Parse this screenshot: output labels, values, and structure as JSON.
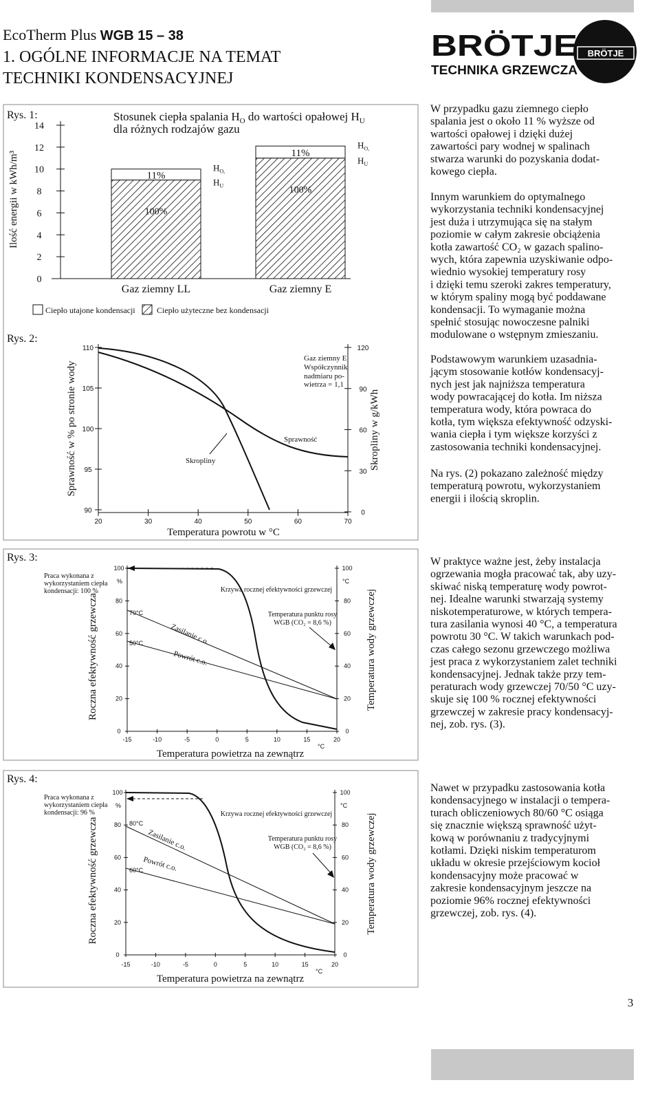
{
  "header": {
    "product": "EcoTherm Plus ",
    "model": "WGB 15 – 38",
    "title_lines": [
      "1. OGÓLNE INFORMACJE NA TEMAT",
      "TECHNIKI KONDENSACYJNEJ"
    ],
    "brand": "BRÖTJE",
    "brand_tagline": "TECHNIKA GRZEWCZA",
    "badge": "BRÖTJE"
  },
  "fig1": {
    "label": "Rys. 1:",
    "title": [
      "Stosunek ciepła spalania H",
      "O",
      " do wartości opałowej H",
      "U"
    ],
    "title_line2": "dla różnych rodzajów gazu",
    "y_label": "Ilość energii w kWh/m³",
    "ylim": [
      0,
      14
    ],
    "yticks": [
      0,
      2,
      4,
      6,
      8,
      10,
      12,
      14
    ],
    "bars": [
      {
        "name": "Gaz ziemny LL",
        "hu": 9.0,
        "ho": 10.0,
        "hu_label": "100%",
        "extra_label": "11%",
        "ho_text": [
          "H",
          "O,"
        ],
        "hu_text": [
          "H",
          "U"
        ]
      },
      {
        "name": "Gaz ziemny E",
        "hu": 11.0,
        "ho": 12.1,
        "hu_label": "100%",
        "extra_label": "11%",
        "ho_text": [
          "H",
          "O,"
        ],
        "hu_text": [
          "H",
          "U"
        ]
      }
    ],
    "legend": [
      "Ciepło utajone kondensacji",
      "Ciepło użyteczne bez kondensacji"
    ]
  },
  "fig2": {
    "label": "Rys. 2:",
    "y_label": "Sprawność w % po stronie wody",
    "y2_label": "Skropliny w g/kWh",
    "x_label": "Temperatura powrotu w °C",
    "yticks": [
      90,
      95,
      100,
      105,
      110
    ],
    "y2ticks": [
      0,
      30,
      60,
      90,
      120
    ],
    "xticks": [
      20,
      30,
      40,
      50,
      60,
      70
    ],
    "annotation": [
      "Gaz ziemny E",
      "Współczynnik",
      "nadmiaru po-",
      "wietrza = 1,1"
    ],
    "efficiency_label": "Sprawność",
    "condensate_label": "Skropliny"
  },
  "fig3": {
    "label": "Rys. 3:",
    "note": [
      "Praca wykonana z",
      "wykorzystaniem ciepła",
      "kondensacji: 100 %"
    ],
    "y_label": "Roczna efektywność grzewcza",
    "y2_label": "Temperatura wody grzewczej",
    "x_label": "Temperatura powietrza na zewnątrz",
    "y_unit": "%",
    "y2_unit": "°C",
    "x_unit": "°C",
    "yticks": [
      0,
      20,
      40,
      60,
      80,
      100
    ],
    "y2ticks": [
      0,
      20,
      40,
      60,
      80,
      100
    ],
    "xticks": [
      -15,
      -10,
      -5,
      0,
      5,
      10,
      15,
      20
    ],
    "curve_label": "Krzywa rocznej efektywności grzewczej",
    "dew_label": [
      "Temperatura punktu rosy",
      "WGB (CO₂ = 8,6 %)"
    ],
    "supply_temp": "70°C",
    "return_temp": "50°C",
    "supply_label": "Zasilanie c.o.",
    "return_label": "Powrót c.o."
  },
  "fig4": {
    "label": "Rys. 4:",
    "note": [
      "Praca wykonana z",
      "wykorzystaniem ciepła",
      "kondensacji: 96 %"
    ],
    "y_label": "Roczna efektywność grzewcza",
    "y2_label": "Temperatura wody grzewczej",
    "x_label": "Temperatura powietrza na zewnątrz",
    "y_unit": "%",
    "y2_unit": "°C",
    "x_unit": "°C",
    "yticks": [
      0,
      20,
      40,
      60,
      80,
      100
    ],
    "y2ticks": [
      0,
      20,
      40,
      60,
      80,
      100
    ],
    "xticks": [
      -15,
      -10,
      -5,
      0,
      5,
      10,
      15,
      20
    ],
    "curve_label": "Krzywa rocznej efektywności grzewczej",
    "dew_label": [
      "Temperatura punktu rosy",
      "WGB (CO₂ = 8,6 %)"
    ],
    "supply_temp": "80°C",
    "return_temp": "60°C",
    "supply_label": "Zasilanie c.o.",
    "return_label": "Powrót c.o."
  },
  "paragraphs": [
    [
      "W przypadku gazu ziemnego ciepło",
      "spalania jest o około 11 % wyższe od",
      "wartości opałowej i dzięki dużej",
      "zawartości pary wodnej w spalinach",
      "stwarza warunki do pozyskania dodat-",
      "kowego ciepła."
    ],
    [
      "Innym warunkiem do optymalnego",
      "wykorzystania techniki kondensacyjnej",
      "jest duża i utrzymująca się na stałym",
      "poziomie w całym zakresie obciążenia",
      "kotła zawartość CO₂ w gazach spalino-",
      "wych, która zapewnia uzyskiwanie odpo-",
      "wiednio wysokiej temperatury rosy",
      "i dzięki temu szeroki zakres temperatury,",
      "w którym spaliny mogą być poddawane",
      "kondensacji. To wymaganie można",
      "spełnić stosując nowoczesne palniki",
      "modulowane o wstępnym zmieszaniu."
    ],
    [
      "Podstawowym warunkiem uzasadnia-",
      "jącym stosowanie kotłów kondensacyj-",
      "nych jest jak najniższa temperatura",
      "wody powracającej do kotła. Im niższa",
      "temperatura wody, która powraca do",
      "kotła, tym większa efektywność odzyski-",
      "wania ciepła i tym większe korzyści z",
      "zastosowania techniki kondensacyjnej."
    ],
    [
      "Na rys. (2) pokazano zależność między",
      "temperaturą powrotu, wykorzystaniem",
      "energii i ilością skroplin."
    ],
    [
      "W praktyce ważne jest, żeby instalacja",
      "ogrzewania mogła pracować tak, aby uzy-",
      "skiwać niską temperaturę wody powrot-",
      "nej. Idealne warunki stwarzają systemy",
      "niskotemperaturowe, w których tempera-",
      "tura zasilania wynosi 40 °C, a temperatura",
      "powrotu 30 °C. W takich warunkach pod-",
      "czas całego sezonu grzewczego możliwa",
      "jest praca z wykorzystaniem zalet techniki",
      "kondensacyjnej. Jednak także przy tem-",
      "peraturach wody grzewczej 70/50 °C uzy-",
      "skuje się 100 % rocznej efektywności",
      "grzewczej w zakresie pracy kondensacyj-",
      "nej, zob. rys. (3)."
    ],
    [
      "Nawet w przypadku zastosowania kotła",
      "kondensacyjnego w instalacji o tempera-",
      "turach obliczeniowych 80/60 °C osiąga",
      "się znacznie większą sprawność użyt-",
      "kową w porównaniu z tradycyjnymi",
      "kotłami. Dzięki niskim temperaturom",
      "układu w okresie przejściowym kocioł",
      "kondensacyjny może pracować w",
      "zakresie kondensacyjnym jeszcze na",
      "poziomie 96% rocznej efektywności",
      "grzewczej, zob. rys. (4)."
    ]
  ],
  "page_number": "3"
}
